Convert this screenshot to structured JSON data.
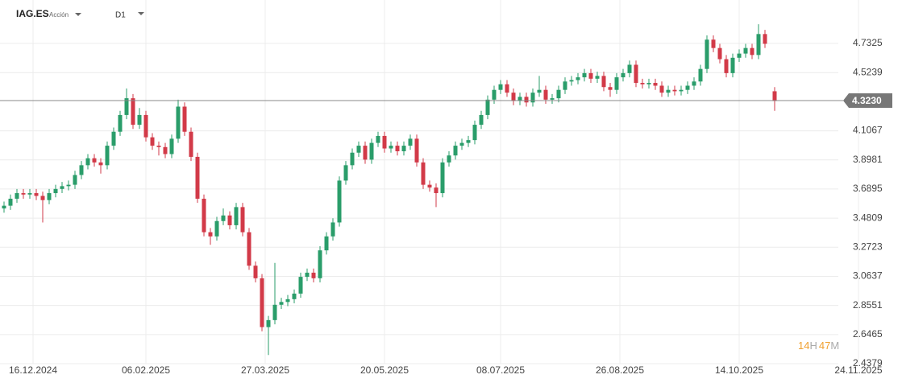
{
  "header": {
    "symbol": "IAG.ES",
    "kind": "Acción",
    "timeframe": "D1"
  },
  "countdown": {
    "hours": 14,
    "hours_unit": "H",
    "minutes": 47,
    "minutes_unit": "M"
  },
  "chart_data": {
    "type": "candlestick",
    "up_color": "#2a9d6a",
    "down_color": "#d23a48",
    "grid": true,
    "xlim": [
      -1.25,
      278.75
    ],
    "ylim": [
      2.4379,
      5.044
    ],
    "xticks": [
      {
        "value": 9,
        "label": "16.12.2024"
      },
      {
        "value": 44,
        "label": "06.02.2025"
      },
      {
        "value": 81,
        "label": "27.03.2025"
      },
      {
        "value": 118,
        "label": "20.05.2025"
      },
      {
        "value": 154,
        "label": "08.07.2025"
      },
      {
        "value": 191,
        "label": "26.08.2025"
      },
      {
        "value": 228,
        "label": "14.10.2025"
      },
      {
        "value": 265,
        "label": "24.11.2025"
      }
    ],
    "yticks": [
      2.4379,
      2.6465,
      2.8551,
      3.0637,
      3.2723,
      3.4809,
      3.6895,
      3.8981,
      4.1067,
      4.5239,
      4.7325
    ],
    "last_price": {
      "value": 4.323,
      "label": "4.3230"
    },
    "x": [
      0,
      2,
      4,
      6,
      8,
      10,
      12,
      14,
      16,
      18,
      20,
      22,
      24,
      26,
      28,
      30,
      32,
      34,
      36,
      38,
      40,
      42,
      44,
      46,
      48,
      50,
      52,
      54,
      56,
      58,
      60,
      62,
      64,
      66,
      68,
      70,
      72,
      74,
      76,
      78,
      80,
      82,
      84,
      86,
      88,
      90,
      92,
      94,
      96,
      98,
      100,
      102,
      104,
      106,
      108,
      110,
      112,
      114,
      116,
      118,
      120,
      122,
      124,
      126,
      128,
      130,
      132,
      134,
      136,
      138,
      140,
      142,
      144,
      146,
      148,
      150,
      152,
      154,
      156,
      158,
      160,
      162,
      164,
      166,
      168,
      170,
      172,
      174,
      176,
      178,
      180,
      182,
      184,
      186,
      188,
      190,
      192,
      194,
      196,
      198,
      200,
      202,
      204,
      206,
      208,
      210,
      212,
      214,
      216,
      218,
      220,
      222,
      224,
      226,
      228,
      230,
      232,
      234,
      236,
      239
    ],
    "open": [
      3.55,
      3.57,
      3.62,
      3.66,
      3.65,
      3.66,
      3.64,
      3.61,
      3.66,
      3.69,
      3.71,
      3.72,
      3.79,
      3.86,
      3.91,
      3.88,
      3.86,
      4.0,
      4.1,
      4.22,
      4.34,
      4.15,
      4.22,
      4.06,
      4.0,
      3.99,
      3.94,
      4.05,
      4.28,
      4.1,
      3.92,
      3.62,
      3.38,
      3.35,
      3.46,
      3.5,
      3.43,
      3.56,
      3.38,
      3.14,
      3.05,
      2.7,
      2.75,
      2.86,
      2.88,
      2.9,
      2.94,
      3.06,
      3.09,
      3.05,
      3.25,
      3.35,
      3.45,
      3.75,
      3.86,
      3.95,
      4.0,
      3.9,
      4.02,
      4.07,
      3.98,
      4.0,
      3.96,
      4.0,
      4.05,
      3.88,
      3.72,
      3.7,
      3.66,
      3.88,
      3.93,
      4.0,
      4.02,
      4.04,
      4.15,
      4.22,
      4.33,
      4.4,
      4.44,
      4.38,
      4.32,
      4.35,
      4.31,
      4.38,
      4.4,
      4.33,
      4.34,
      4.4,
      4.46,
      4.47,
      4.49,
      4.52,
      4.48,
      4.5,
      4.42,
      4.4,
      4.49,
      4.52,
      4.58,
      4.45,
      4.44,
      4.45,
      4.43,
      4.38,
      4.4,
      4.39,
      4.4,
      4.43,
      4.46,
      4.55,
      4.76,
      4.7,
      4.62,
      4.52,
      4.63,
      4.66,
      4.7,
      4.65,
      4.8,
      4.39
    ],
    "high": [
      3.6,
      3.65,
      3.69,
      3.69,
      3.69,
      3.69,
      3.67,
      3.69,
      3.72,
      3.74,
      3.75,
      3.82,
      3.89,
      3.94,
      3.94,
      3.91,
      4.03,
      4.13,
      4.25,
      4.41,
      4.37,
      4.27,
      4.25,
      4.09,
      4.03,
      4.02,
      4.08,
      4.33,
      4.31,
      4.13,
      3.95,
      3.65,
      3.41,
      3.49,
      3.55,
      3.53,
      3.59,
      3.59,
      3.41,
      3.17,
      3.08,
      2.78,
      3.16,
      2.91,
      2.93,
      2.97,
      3.09,
      3.12,
      3.12,
      3.28,
      3.38,
      3.48,
      3.78,
      3.89,
      3.98,
      4.03,
      4.03,
      4.05,
      4.1,
      4.1,
      4.03,
      4.03,
      4.03,
      4.08,
      4.08,
      3.91,
      3.75,
      3.73,
      3.91,
      3.96,
      4.03,
      4.05,
      4.07,
      4.18,
      4.25,
      4.36,
      4.43,
      4.47,
      4.47,
      4.41,
      4.38,
      4.38,
      4.41,
      4.5,
      4.43,
      4.37,
      4.43,
      4.49,
      4.5,
      4.52,
      4.55,
      4.55,
      4.53,
      4.53,
      4.45,
      4.52,
      4.55,
      4.61,
      4.61,
      4.48,
      4.48,
      4.48,
      4.46,
      4.43,
      4.43,
      4.43,
      4.46,
      4.49,
      4.58,
      4.79,
      4.79,
      4.73,
      4.65,
      4.66,
      4.69,
      4.73,
      4.73,
      4.87,
      4.83,
      4.42
    ],
    "low": [
      3.52,
      3.54,
      3.59,
      3.62,
      3.62,
      3.61,
      3.45,
      3.58,
      3.63,
      3.66,
      3.68,
      3.69,
      3.76,
      3.83,
      3.85,
      3.8,
      3.83,
      3.97,
      4.07,
      4.19,
      4.12,
      4.12,
      4.03,
      3.97,
      3.93,
      3.91,
      3.91,
      4.02,
      4.07,
      3.89,
      3.59,
      3.35,
      3.29,
      3.32,
      3.43,
      3.4,
      3.4,
      3.35,
      3.11,
      3.02,
      2.67,
      2.5,
      2.72,
      2.83,
      2.85,
      2.87,
      2.91,
      3.03,
      3.02,
      3.02,
      3.22,
      3.32,
      3.42,
      3.72,
      3.83,
      3.92,
      3.87,
      3.87,
      3.99,
      3.95,
      3.95,
      3.93,
      3.93,
      3.97,
      3.85,
      3.69,
      3.67,
      3.56,
      3.63,
      3.85,
      3.9,
      3.97,
      3.99,
      4.01,
      4.12,
      4.19,
      4.3,
      4.37,
      4.35,
      4.29,
      4.29,
      4.28,
      4.28,
      4.35,
      4.3,
      4.3,
      4.31,
      4.37,
      4.43,
      4.44,
      4.46,
      4.45,
      4.45,
      4.39,
      4.35,
      4.37,
      4.46,
      4.49,
      4.42,
      4.41,
      4.41,
      4.4,
      4.35,
      4.35,
      4.36,
      4.36,
      4.37,
      4.4,
      4.43,
      4.52,
      4.67,
      4.59,
      4.49,
      4.49,
      4.6,
      4.63,
      4.62,
      4.62,
      4.7,
      4.25
    ],
    "close": [
      3.57,
      3.62,
      3.66,
      3.65,
      3.66,
      3.64,
      3.61,
      3.66,
      3.69,
      3.71,
      3.72,
      3.79,
      3.86,
      3.91,
      3.88,
      3.86,
      4.0,
      4.1,
      4.22,
      4.34,
      4.15,
      4.22,
      4.06,
      4.0,
      3.99,
      3.94,
      4.05,
      4.28,
      4.1,
      3.92,
      3.62,
      3.38,
      3.35,
      3.46,
      3.5,
      3.43,
      3.56,
      3.38,
      3.14,
      3.05,
      2.7,
      2.75,
      2.86,
      2.88,
      2.9,
      2.94,
      3.06,
      3.09,
      3.05,
      3.25,
      3.35,
      3.45,
      3.75,
      3.86,
      3.95,
      4.0,
      3.9,
      4.02,
      4.07,
      3.98,
      4.0,
      3.96,
      4.0,
      4.05,
      3.88,
      3.72,
      3.7,
      3.66,
      3.88,
      3.93,
      4.0,
      4.02,
      4.04,
      4.15,
      4.22,
      4.33,
      4.4,
      4.44,
      4.38,
      4.32,
      4.35,
      4.31,
      4.38,
      4.4,
      4.33,
      4.34,
      4.4,
      4.46,
      4.47,
      4.49,
      4.52,
      4.48,
      4.5,
      4.42,
      4.4,
      4.49,
      4.52,
      4.58,
      4.45,
      4.44,
      4.45,
      4.43,
      4.38,
      4.4,
      4.39,
      4.4,
      4.43,
      4.46,
      4.55,
      4.76,
      4.7,
      4.62,
      4.52,
      4.63,
      4.66,
      4.7,
      4.65,
      4.8,
      4.73,
      4.32
    ]
  }
}
